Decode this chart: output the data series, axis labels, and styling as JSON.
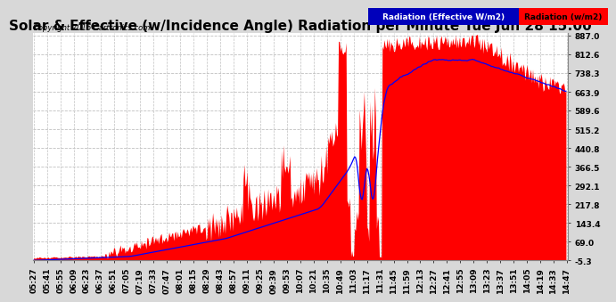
{
  "title": "Solar & Effective (w/Incidence Angle) Radiation per Minute Tue Jun 28 15:00",
  "copyright": "Copyright 2016 Cartronics.com",
  "legend_blue": "Radiation (Effective W/m2)",
  "legend_red": "Radiation (w/m2)",
  "yticks": [
    887.0,
    812.6,
    738.3,
    663.9,
    589.6,
    515.2,
    440.8,
    366.5,
    292.1,
    217.8,
    143.4,
    69.0,
    -5.3
  ],
  "ymin": -5.3,
  "ymax": 887.0,
  "background_color": "#d8d8d8",
  "plot_bg": "#ffffff",
  "bar_color": "#ff0000",
  "line_color": "#0000ff",
  "grid_color": "#c0c0c0",
  "title_fontsize": 11,
  "tick_fontsize": 6.5,
  "xtick_labels": [
    "05:27",
    "05:41",
    "05:55",
    "06:09",
    "06:23",
    "06:37",
    "06:51",
    "07:05",
    "07:19",
    "07:33",
    "07:47",
    "08:01",
    "08:15",
    "08:29",
    "08:43",
    "08:57",
    "09:11",
    "09:25",
    "09:39",
    "09:53",
    "10:07",
    "10:21",
    "10:35",
    "10:49",
    "11:03",
    "11:17",
    "11:31",
    "11:45",
    "11:59",
    "12:13",
    "12:27",
    "12:41",
    "12:55",
    "13:09",
    "13:23",
    "13:37",
    "13:51",
    "14:05",
    "14:19",
    "14:33",
    "14:47"
  ],
  "n_xticks": 41,
  "n_minutes": 560
}
